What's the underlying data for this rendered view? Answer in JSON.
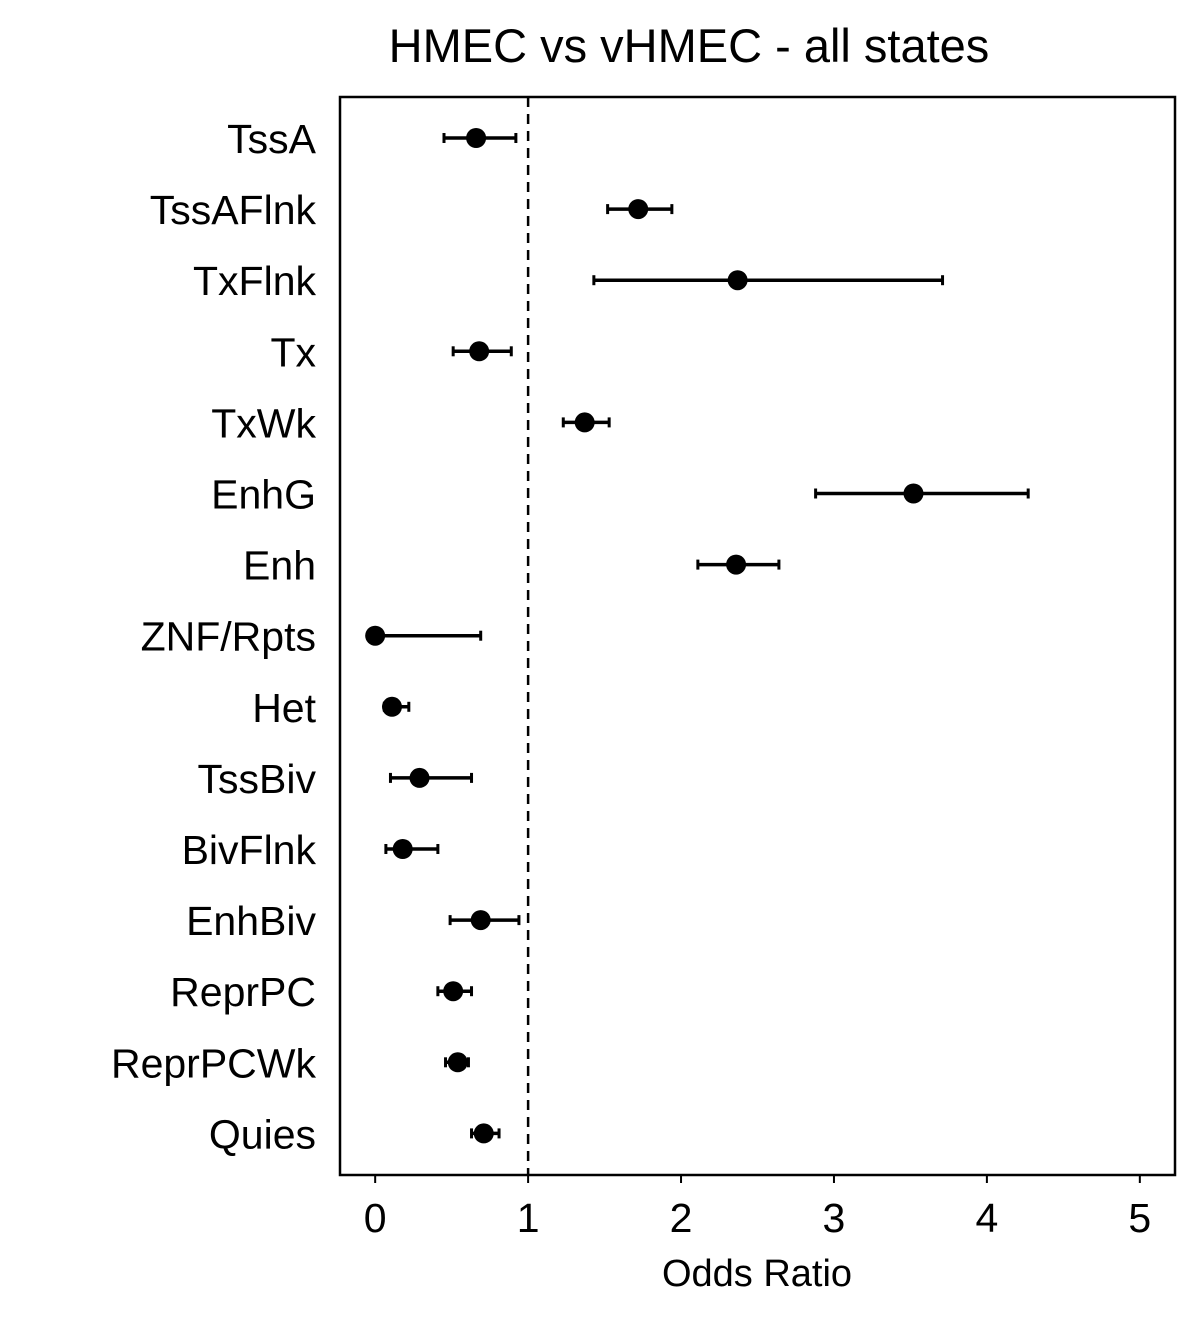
{
  "chart_data": {
    "type": "scatter",
    "subtype": "forest-plot",
    "title": "HMEC vs vHMEC - all states",
    "xlabel": "Odds Ratio",
    "ylabel": "",
    "xlim": [
      -0.23,
      5.23
    ],
    "x_ticks": [
      0,
      1,
      2,
      3,
      4,
      5
    ],
    "reference_line": {
      "x": 1,
      "style": "dashed"
    },
    "grid": false,
    "legend": "none",
    "categories": [
      "TssA",
      "TssAFlnk",
      "TxFlnk",
      "Tx",
      "TxWk",
      "EnhG",
      "Enh",
      "ZNF/Rpts",
      "Het",
      "TssBiv",
      "BivFlnk",
      "EnhBiv",
      "ReprPC",
      "ReprPCWk",
      "Quies"
    ],
    "series": [
      {
        "values": [
          0.66,
          1.72,
          2.37,
          0.68,
          1.37,
          3.52,
          2.36,
          0.0,
          0.11,
          0.29,
          0.18,
          0.69,
          0.51,
          0.54,
          0.71
        ],
        "ci_low": [
          0.45,
          1.52,
          1.43,
          0.51,
          1.23,
          2.88,
          2.11,
          0.0,
          0.06,
          0.1,
          0.07,
          0.49,
          0.41,
          0.46,
          0.63
        ],
        "ci_high": [
          0.92,
          1.94,
          3.71,
          0.89,
          1.53,
          4.27,
          2.64,
          0.69,
          0.22,
          0.63,
          0.41,
          0.94,
          0.63,
          0.61,
          0.81
        ]
      }
    ],
    "colors": {
      "marker": "#000000",
      "line": "#000000",
      "frame": "#000000"
    }
  }
}
